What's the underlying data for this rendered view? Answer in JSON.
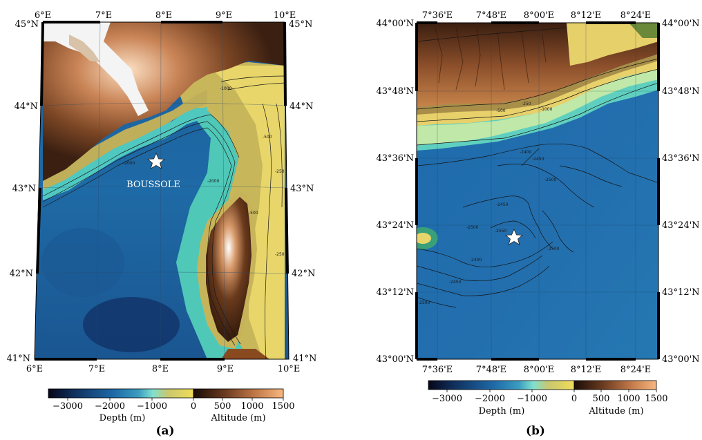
{
  "panel_a": {
    "label": "(a)",
    "lon_ticks": [
      "6°E",
      "7°E",
      "8°E",
      "9°E",
      "10°E"
    ],
    "lat_ticks": [
      "45°N",
      "44°N",
      "43°N",
      "42°N",
      "41°N"
    ],
    "site_label": "BOUSSOLE",
    "contour_labels": [
      "-2000",
      "-2000",
      "-1000",
      "-500",
      "-500",
      "-250",
      "-250"
    ],
    "colorbar": {
      "ticks": [
        "−3000",
        "−2000",
        "−1000",
        "0",
        "500",
        "1000",
        "1500"
      ],
      "depth_label": "Depth (m)",
      "altitude_label": "Altitude (m)"
    }
  },
  "panel_b": {
    "label": "(b)",
    "lon_ticks": [
      "7°36'E",
      "7°48'E",
      "8°00'E",
      "8°12'E",
      "8°24'E"
    ],
    "lat_ticks": [
      "44°00'N",
      "43°48'N",
      "43°36'N",
      "43°24'N",
      "43°12'N",
      "43°00'N"
    ],
    "contour_labels": [
      "-2400",
      "-2450",
      "-2500",
      "-2450",
      "-2400",
      "-2500",
      "-2550",
      "-2500",
      "-2450",
      "-2500",
      "-1000",
      "-500",
      "-250"
    ],
    "colorbar": {
      "ticks": [
        "−3000",
        "−2000",
        "−1000",
        "0",
        "500",
        "1000",
        "1500"
      ],
      "depth_label": "Depth (m)",
      "altitude_label": "Altitude (m)"
    }
  },
  "colors": {
    "deep": "#0b2550",
    "mid_sea": "#1f6aa8",
    "shallow": "#3fc8c8",
    "shelf": "#e8d86a",
    "coast": "#9a8a4a",
    "land_low": "#3a2010",
    "land_mid": "#a5643a",
    "land_high": "#f0b888",
    "snow": "#ffffff"
  }
}
